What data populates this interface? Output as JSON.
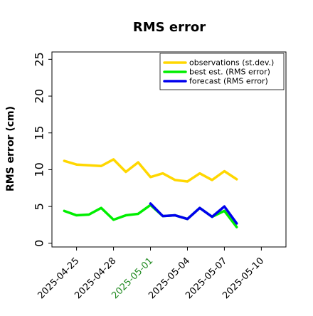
{
  "chart_data": {
    "type": "line",
    "title": "RMS error",
    "xlabel": "",
    "ylabel": "RMS error (cm)",
    "x_tick_labels": [
      {
        "date": "2025-04-25",
        "label": "2025-04-25",
        "color": "#000000"
      },
      {
        "date": "2025-04-28",
        "label": "2025-04-28",
        "color": "#000000"
      },
      {
        "date": "2025-05-01",
        "label": "2025-05-01",
        "color": "#228b22"
      },
      {
        "date": "2025-05-04",
        "label": "2025-05-04",
        "color": "#000000"
      },
      {
        "date": "2025-05-07",
        "label": "2025-05-07",
        "color": "#000000"
      },
      {
        "date": "2025-05-10",
        "label": "2025-05-10",
        "color": "#000000"
      }
    ],
    "xlim": [
      "2025-04-23",
      "2025-05-12"
    ],
    "ylim": [
      -0.5,
      26
    ],
    "y_ticks": [
      0,
      5,
      10,
      15,
      20,
      25
    ],
    "grid": false,
    "legend_position": "top-right",
    "series": [
      {
        "name": "observations (st.dev.)",
        "color": "#ffd700",
        "x": [
          "2025-04-24",
          "2025-04-25",
          "2025-04-26",
          "2025-04-27",
          "2025-04-28",
          "2025-04-29",
          "2025-04-30",
          "2025-05-01",
          "2025-05-02",
          "2025-05-03",
          "2025-05-04",
          "2025-05-05",
          "2025-05-06",
          "2025-05-07",
          "2025-05-08"
        ],
        "values": [
          11.2,
          10.7,
          10.6,
          10.5,
          11.4,
          9.7,
          11.0,
          9.0,
          9.5,
          8.6,
          8.4,
          9.5,
          8.6,
          9.8,
          8.7
        ]
      },
      {
        "name": "best est. (RMS error)",
        "color": "#00ee00",
        "x": [
          "2025-04-24",
          "2025-04-25",
          "2025-04-26",
          "2025-04-27",
          "2025-04-28",
          "2025-04-29",
          "2025-04-30",
          "2025-05-01",
          "2025-05-02",
          "2025-05-03",
          "2025-05-04",
          "2025-05-05",
          "2025-05-06",
          "2025-05-07",
          "2025-05-08"
        ],
        "values": [
          4.4,
          3.8,
          3.9,
          4.8,
          3.2,
          3.8,
          4.0,
          5.2,
          3.7,
          3.8,
          3.3,
          4.8,
          3.6,
          4.4,
          2.2
        ]
      },
      {
        "name": "forecast (RMS error)",
        "color": "#0000ee",
        "x": [
          "2025-05-01",
          "2025-05-02",
          "2025-05-03",
          "2025-05-04",
          "2025-05-05",
          "2025-05-06",
          "2025-05-07",
          "2025-05-08"
        ],
        "values": [
          5.4,
          3.7,
          3.8,
          3.3,
          4.8,
          3.6,
          5.0,
          2.7
        ]
      }
    ]
  }
}
